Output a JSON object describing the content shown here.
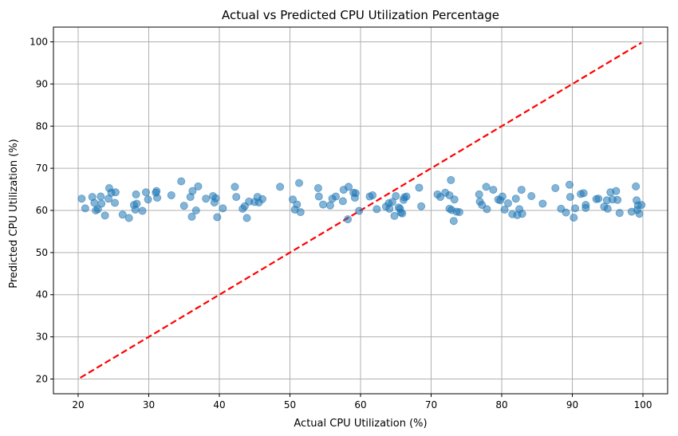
{
  "chart_data": {
    "type": "scatter",
    "title": "Actual vs Predicted CPU Utilization Percentage",
    "xlabel": "Actual CPU Utilization (%)",
    "ylabel": "Predicted CPU Utilization (%)",
    "xlim": [
      16.5,
      103.5
    ],
    "ylim": [
      16.5,
      103.5
    ],
    "xticks": [
      20,
      30,
      40,
      50,
      60,
      70,
      80,
      90,
      100
    ],
    "yticks": [
      20,
      30,
      40,
      50,
      60,
      70,
      80,
      90,
      100
    ],
    "grid": true,
    "legend": "none",
    "point_color": "#1f77b4",
    "reference_line": {
      "x": [
        20.3,
        99.8
      ],
      "y": [
        20.3,
        99.8
      ],
      "color": "#ff0000",
      "style": "dashed"
    },
    "points": [
      {
        "x": 20.5,
        "y": 62.8
      },
      {
        "x": 21.0,
        "y": 60.5
      },
      {
        "x": 22.0,
        "y": 63.2
      },
      {
        "x": 22.3,
        "y": 61.8
      },
      {
        "x": 22.5,
        "y": 60.0
      },
      {
        "x": 22.8,
        "y": 60.3
      },
      {
        "x": 23.2,
        "y": 63.3
      },
      {
        "x": 23.3,
        "y": 61.6
      },
      {
        "x": 23.8,
        "y": 58.8
      },
      {
        "x": 24.3,
        "y": 62.8
      },
      {
        "x": 24.4,
        "y": 65.3
      },
      {
        "x": 24.7,
        "y": 64.2
      },
      {
        "x": 25.3,
        "y": 64.3
      },
      {
        "x": 25.2,
        "y": 61.8
      },
      {
        "x": 26.3,
        "y": 59.0
      },
      {
        "x": 27.2,
        "y": 58.2
      },
      {
        "x": 27.9,
        "y": 61.3
      },
      {
        "x": 28.2,
        "y": 63.8
      },
      {
        "x": 28.3,
        "y": 61.6
      },
      {
        "x": 28.1,
        "y": 60.2
      },
      {
        "x": 29.1,
        "y": 59.9
      },
      {
        "x": 29.6,
        "y": 64.3
      },
      {
        "x": 29.9,
        "y": 62.6
      },
      {
        "x": 31.1,
        "y": 64.6
      },
      {
        "x": 31.2,
        "y": 63.0
      },
      {
        "x": 31.0,
        "y": 64.2
      },
      {
        "x": 33.2,
        "y": 63.6
      },
      {
        "x": 34.6,
        "y": 66.9
      },
      {
        "x": 35.0,
        "y": 61.1
      },
      {
        "x": 35.9,
        "y": 63.2
      },
      {
        "x": 36.1,
        "y": 58.5
      },
      {
        "x": 36.2,
        "y": 64.6
      },
      {
        "x": 36.7,
        "y": 60.0
      },
      {
        "x": 37.0,
        "y": 65.7
      },
      {
        "x": 38.1,
        "y": 62.8
      },
      {
        "x": 39.1,
        "y": 63.4
      },
      {
        "x": 39.3,
        "y": 61.9
      },
      {
        "x": 39.5,
        "y": 62.9
      },
      {
        "x": 39.7,
        "y": 58.4
      },
      {
        "x": 40.5,
        "y": 60.5
      },
      {
        "x": 42.2,
        "y": 65.6
      },
      {
        "x": 42.4,
        "y": 63.2
      },
      {
        "x": 43.3,
        "y": 60.4
      },
      {
        "x": 43.6,
        "y": 61.0
      },
      {
        "x": 43.9,
        "y": 58.2
      },
      {
        "x": 44.2,
        "y": 62.1
      },
      {
        "x": 45.0,
        "y": 62.0
      },
      {
        "x": 45.4,
        "y": 63.2
      },
      {
        "x": 45.6,
        "y": 61.9
      },
      {
        "x": 46.1,
        "y": 62.7
      },
      {
        "x": 48.6,
        "y": 65.6
      },
      {
        "x": 50.4,
        "y": 62.6
      },
      {
        "x": 50.7,
        "y": 60.2
      },
      {
        "x": 51.0,
        "y": 61.4
      },
      {
        "x": 51.3,
        "y": 66.5
      },
      {
        "x": 51.5,
        "y": 59.6
      },
      {
        "x": 54.0,
        "y": 65.3
      },
      {
        "x": 54.1,
        "y": 63.3
      },
      {
        "x": 54.7,
        "y": 61.4
      },
      {
        "x": 55.7,
        "y": 61.2
      },
      {
        "x": 56.0,
        "y": 62.8
      },
      {
        "x": 56.5,
        "y": 63.3
      },
      {
        "x": 57.5,
        "y": 62.2
      },
      {
        "x": 57.6,
        "y": 64.9
      },
      {
        "x": 58.3,
        "y": 65.6
      },
      {
        "x": 58.2,
        "y": 57.9
      },
      {
        "x": 59.0,
        "y": 64.2
      },
      {
        "x": 59.2,
        "y": 63.0
      },
      {
        "x": 59.3,
        "y": 64.1
      },
      {
        "x": 59.8,
        "y": 59.9
      },
      {
        "x": 61.3,
        "y": 63.3
      },
      {
        "x": 61.7,
        "y": 63.6
      },
      {
        "x": 62.3,
        "y": 60.3
      },
      {
        "x": 63.6,
        "y": 60.9
      },
      {
        "x": 64.1,
        "y": 60.4
      },
      {
        "x": 64.0,
        "y": 61.7
      },
      {
        "x": 64.5,
        "y": 62.0
      },
      {
        "x": 64.8,
        "y": 58.7
      },
      {
        "x": 65.0,
        "y": 63.4
      },
      {
        "x": 65.4,
        "y": 60.7
      },
      {
        "x": 65.6,
        "y": 60.4
      },
      {
        "x": 65.7,
        "y": 59.5
      },
      {
        "x": 65.9,
        "y": 59.3
      },
      {
        "x": 66.1,
        "y": 62.5
      },
      {
        "x": 66.2,
        "y": 63.1
      },
      {
        "x": 66.5,
        "y": 63.3
      },
      {
        "x": 68.3,
        "y": 65.4
      },
      {
        "x": 68.6,
        "y": 61.0
      },
      {
        "x": 70.9,
        "y": 63.8
      },
      {
        "x": 71.3,
        "y": 63.2
      },
      {
        "x": 72.0,
        "y": 64.2
      },
      {
        "x": 72.6,
        "y": 63.6
      },
      {
        "x": 72.6,
        "y": 60.4
      },
      {
        "x": 72.8,
        "y": 67.2
      },
      {
        "x": 72.9,
        "y": 60.1
      },
      {
        "x": 73.3,
        "y": 62.6
      },
      {
        "x": 73.2,
        "y": 57.5
      },
      {
        "x": 73.6,
        "y": 59.7
      },
      {
        "x": 74.0,
        "y": 59.6
      },
      {
        "x": 76.8,
        "y": 63.8
      },
      {
        "x": 76.9,
        "y": 62.1
      },
      {
        "x": 77.2,
        "y": 61.3
      },
      {
        "x": 77.8,
        "y": 65.6
      },
      {
        "x": 77.9,
        "y": 60.3
      },
      {
        "x": 78.8,
        "y": 64.9
      },
      {
        "x": 79.5,
        "y": 62.6
      },
      {
        "x": 79.8,
        "y": 62.4
      },
      {
        "x": 80.1,
        "y": 63.3
      },
      {
        "x": 80.4,
        "y": 60.2
      },
      {
        "x": 80.9,
        "y": 61.7
      },
      {
        "x": 81.5,
        "y": 59.1
      },
      {
        "x": 82.0,
        "y": 62.8
      },
      {
        "x": 82.2,
        "y": 58.9
      },
      {
        "x": 82.5,
        "y": 60.3
      },
      {
        "x": 82.8,
        "y": 64.9
      },
      {
        "x": 82.9,
        "y": 59.2
      },
      {
        "x": 84.2,
        "y": 63.4
      },
      {
        "x": 85.8,
        "y": 61.6
      },
      {
        "x": 87.6,
        "y": 65.3
      },
      {
        "x": 88.4,
        "y": 60.4
      },
      {
        "x": 89.1,
        "y": 59.5
      },
      {
        "x": 89.6,
        "y": 66.1
      },
      {
        "x": 89.7,
        "y": 63.2
      },
      {
        "x": 90.2,
        "y": 58.3
      },
      {
        "x": 90.4,
        "y": 60.5
      },
      {
        "x": 91.2,
        "y": 63.9
      },
      {
        "x": 91.6,
        "y": 64.1
      },
      {
        "x": 91.9,
        "y": 61.3
      },
      {
        "x": 91.9,
        "y": 60.6
      },
      {
        "x": 93.4,
        "y": 62.7
      },
      {
        "x": 93.7,
        "y": 62.8
      },
      {
        "x": 94.5,
        "y": 60.9
      },
      {
        "x": 94.9,
        "y": 62.4
      },
      {
        "x": 95.0,
        "y": 60.4
      },
      {
        "x": 95.4,
        "y": 64.3
      },
      {
        "x": 95.7,
        "y": 62.6
      },
      {
        "x": 96.2,
        "y": 64.6
      },
      {
        "x": 96.4,
        "y": 62.5
      },
      {
        "x": 96.7,
        "y": 59.4
      },
      {
        "x": 98.4,
        "y": 59.7
      },
      {
        "x": 99.0,
        "y": 65.7
      },
      {
        "x": 99.1,
        "y": 62.4
      },
      {
        "x": 99.2,
        "y": 60.1
      },
      {
        "x": 99.3,
        "y": 61.2
      },
      {
        "x": 99.5,
        "y": 59.2
      },
      {
        "x": 99.8,
        "y": 61.3
      }
    ]
  }
}
